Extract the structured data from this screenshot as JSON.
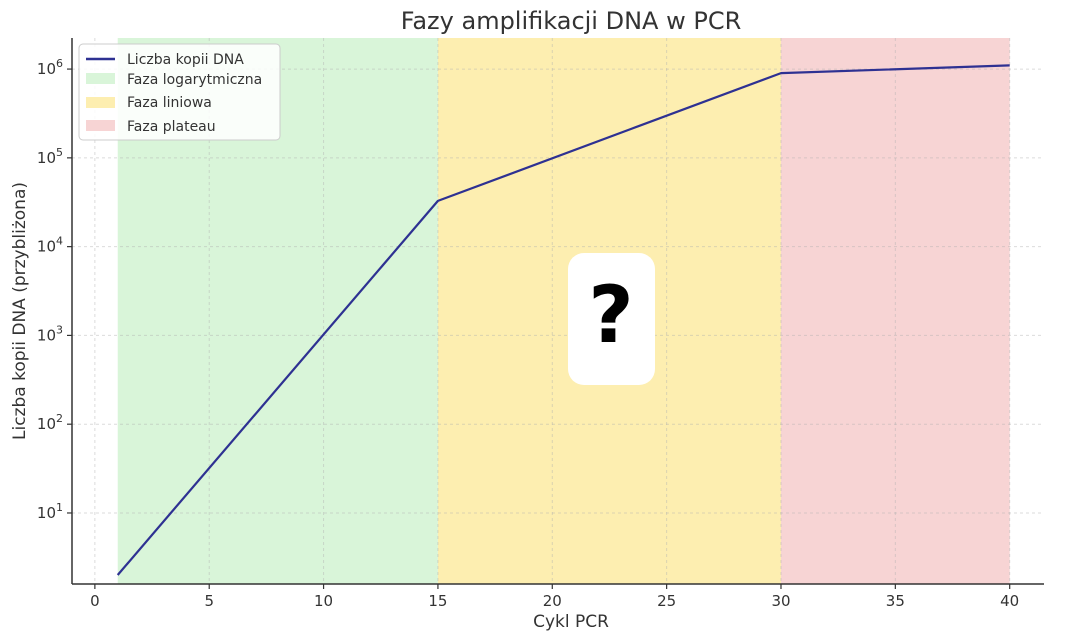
{
  "chart_data": {
    "type": "line",
    "title": "Fazy amplifikacji DNA w PCR",
    "xlabel": "Cykl PCR",
    "ylabel": "Liczba kopii DNA (przybliżona)",
    "xlim": [
      -1,
      41.5
    ],
    "ylim_log10": [
      0.2,
      6.35
    ],
    "yscale": "log",
    "grid": true,
    "legend_position": "top-left",
    "x_ticks": [
      0,
      5,
      10,
      15,
      20,
      25,
      30,
      35,
      40
    ],
    "y_ticks": [
      {
        "base": "10",
        "exp": "1",
        "log10": 1
      },
      {
        "base": "10",
        "exp": "2",
        "log10": 2
      },
      {
        "base": "10",
        "exp": "3",
        "log10": 3
      },
      {
        "base": "10",
        "exp": "4",
        "log10": 4
      },
      {
        "base": "10",
        "exp": "5",
        "log10": 5
      },
      {
        "base": "10",
        "exp": "6",
        "log10": 6
      }
    ],
    "series": [
      {
        "name": "Liczba kopii DNA",
        "color": "#2e3192",
        "x": [
          1,
          15,
          30,
          40
        ],
        "y": [
          2,
          32768,
          900000,
          1100000
        ]
      }
    ],
    "regions": [
      {
        "name": "Faza logarytmiczna",
        "x_start": 1,
        "x_end": 15,
        "color": "#d9f5d9"
      },
      {
        "name": "Faza liniowa",
        "x_start": 15,
        "x_end": 30,
        "color": "#fdeeb0"
      },
      {
        "name": "Faza plateau",
        "x_start": 30,
        "x_end": 40,
        "color": "#f7d4d4"
      }
    ],
    "annotation": "?"
  }
}
